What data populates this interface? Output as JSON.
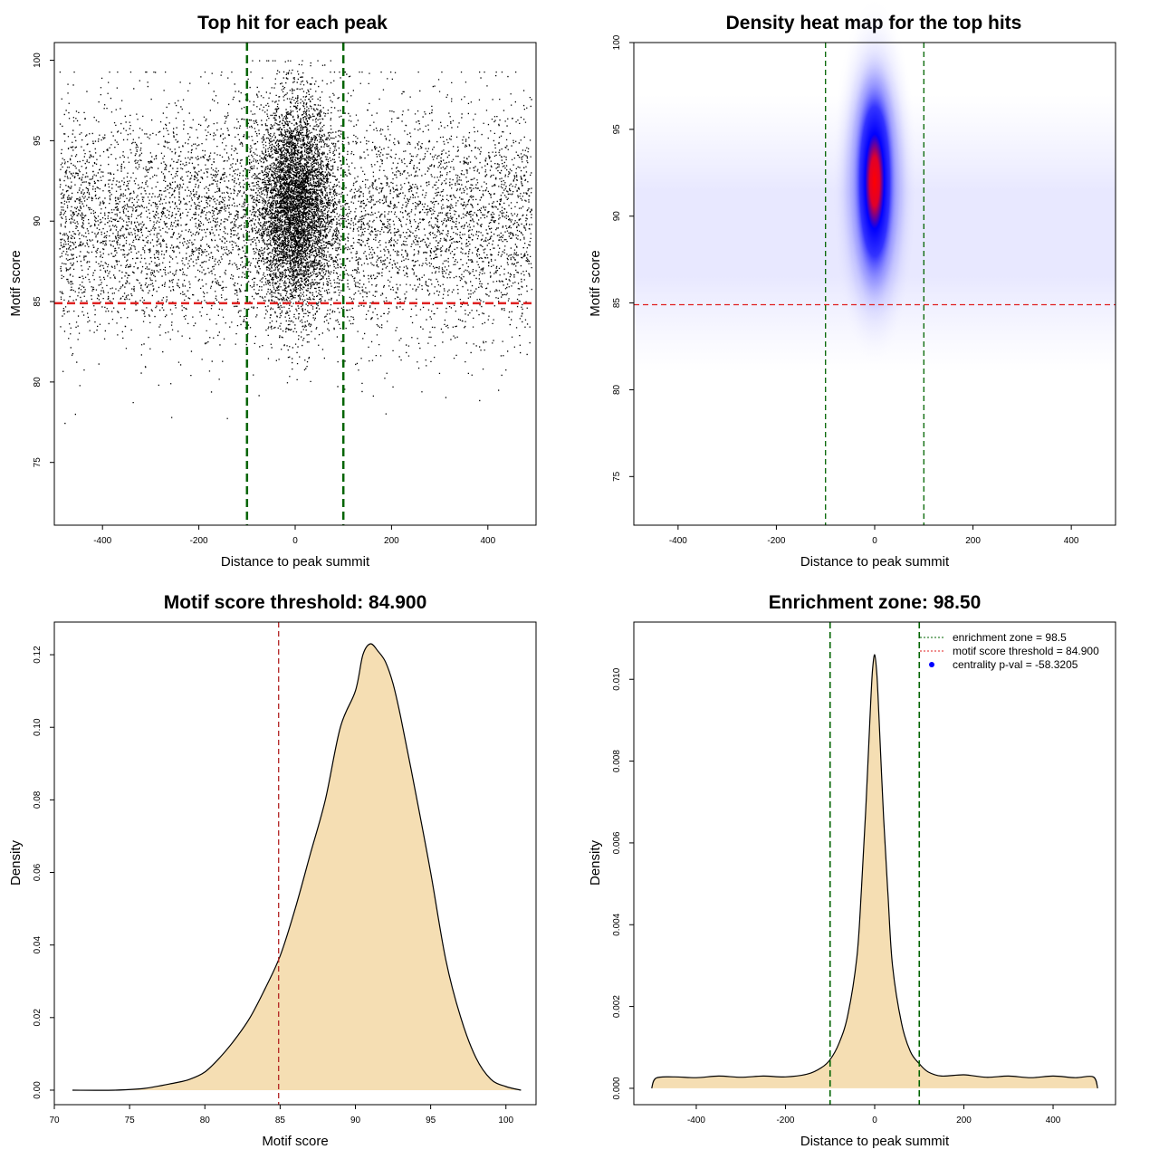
{
  "chart_data": [
    {
      "type": "scatter",
      "title": "Top hit for each peak",
      "xlabel": "Distance to peak summit",
      "ylabel": "Motif score",
      "xlim": [
        -500,
        500
      ],
      "ylim": [
        71.1,
        101.1
      ],
      "xticks": [
        -400,
        -200,
        0,
        200,
        400
      ],
      "yticks": [
        75,
        80,
        85,
        90,
        95,
        100
      ],
      "vlines": [
        -100,
        100
      ],
      "hline": 84.9,
      "line_colors": {
        "vertical": "#006400",
        "horizontal": "#e02020"
      },
      "point_color": "#000000",
      "distribution": {
        "central": {
          "x_sd": 38,
          "y_mean": 91.0,
          "y_sd": 3.2,
          "n": 9000
        },
        "background": {
          "x_range": [
            -490,
            490
          ],
          "y_mean": 90.0,
          "y_sd": 3.6,
          "n": 7000
        }
      }
    },
    {
      "type": "heatmap",
      "title": "Density heat map for the top hits",
      "xlabel": "Distance to peak summit",
      "ylabel": "Motif score",
      "xlim": [
        -490,
        490
      ],
      "ylim": [
        72.2,
        100.0
      ],
      "xticks": [
        -400,
        -200,
        0,
        200,
        400
      ],
      "yticks": [
        75,
        80,
        85,
        90,
        95,
        100
      ],
      "vlines": [
        -100,
        100
      ],
      "hline": 84.9,
      "peak": {
        "x": 0,
        "y": 92.0
      },
      "colors": {
        "low": "#ffffff",
        "mid": "#0000ff",
        "high": "#ff0000",
        "vertical": "#006400",
        "horizontal": "#e02020"
      }
    },
    {
      "type": "area",
      "title": "Motif score threshold: 84.900",
      "xlabel": "Motif score",
      "ylabel": "Density",
      "xlim": [
        70,
        102
      ],
      "ylim": [
        -0.004,
        0.129
      ],
      "xticks": [
        70,
        75,
        80,
        85,
        90,
        95,
        100
      ],
      "yticks": [
        0.0,
        0.02,
        0.04,
        0.06,
        0.08,
        0.1,
        0.12
      ],
      "ytick_labels": [
        "0.00",
        "0.02",
        "0.04",
        "0.06",
        "0.08",
        "0.10",
        "0.12"
      ],
      "x": [
        71.2,
        74,
        76,
        78,
        79,
        80,
        81,
        82,
        83,
        84,
        85,
        86,
        87,
        88,
        89,
        90,
        90.5,
        91,
        91.5,
        92,
        92.5,
        93,
        94,
        95,
        96,
        97,
        98,
        99,
        100,
        101
      ],
      "values": [
        0.0,
        0.0,
        0.0005,
        0.002,
        0.003,
        0.005,
        0.009,
        0.014,
        0.02,
        0.028,
        0.037,
        0.05,
        0.065,
        0.08,
        0.1,
        0.11,
        0.12,
        0.123,
        0.121,
        0.118,
        0.112,
        0.103,
        0.082,
        0.06,
        0.036,
        0.02,
        0.009,
        0.003,
        0.001,
        0.0
      ],
      "vline": 84.9,
      "fill": "#f5deb3",
      "line_color": "#b22222"
    },
    {
      "type": "area",
      "title": "Enrichment zone: 98.50",
      "xlabel": "Distance to peak summit",
      "ylabel": "Density",
      "xlim": [
        -540,
        540
      ],
      "ylim": [
        -0.0004,
        0.0114
      ],
      "xticks": [
        -400,
        -200,
        0,
        200,
        400
      ],
      "yticks": [
        0.0,
        0.002,
        0.004,
        0.006,
        0.008,
        0.01
      ],
      "ytick_labels": [
        "0.000",
        "0.002",
        "0.004",
        "0.006",
        "0.008",
        "0.010"
      ],
      "x": [
        -500,
        -490,
        -450,
        -400,
        -350,
        -300,
        -250,
        -200,
        -150,
        -120,
        -100,
        -80,
        -60,
        -40,
        -30,
        -20,
        -10,
        -5,
        0,
        5,
        10,
        20,
        30,
        40,
        60,
        80,
        100,
        120,
        150,
        200,
        250,
        300,
        350,
        400,
        450,
        490,
        500
      ],
      "values": [
        0.0,
        0.00025,
        0.00028,
        0.00026,
        0.0003,
        0.00027,
        0.0003,
        0.00028,
        0.00035,
        0.0005,
        0.0007,
        0.0011,
        0.0018,
        0.0032,
        0.0048,
        0.0068,
        0.0092,
        0.0102,
        0.0106,
        0.0101,
        0.009,
        0.0066,
        0.0047,
        0.003,
        0.0016,
        0.0009,
        0.0006,
        0.0004,
        0.0003,
        0.00033,
        0.00027,
        0.0003,
        0.00026,
        0.0003,
        0.00026,
        0.00028,
        0.0
      ],
      "vlines": [
        -100,
        100
      ],
      "fill": "#f5deb3",
      "line_color": "#006400",
      "legend": [
        {
          "label": "enrichment zone = 98.5",
          "color": "#006400",
          "style": "dotted"
        },
        {
          "label": "motif score threshold = 84.900",
          "color": "#e02020",
          "style": "dotted"
        },
        {
          "label": "centrality p-val = -58.3205",
          "color": "#0000ff",
          "style": "point"
        }
      ]
    }
  ]
}
